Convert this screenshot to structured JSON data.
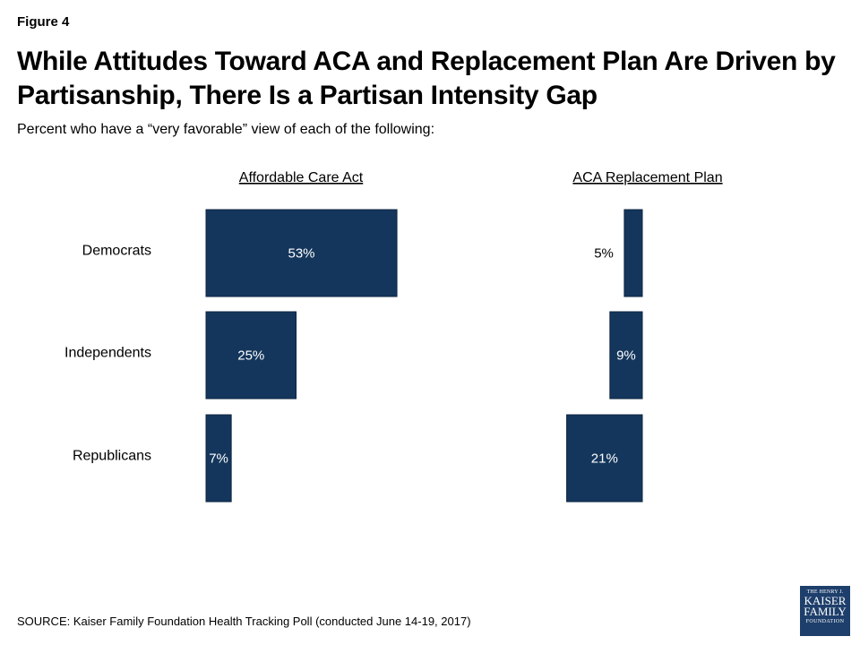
{
  "figure_label": "Figure 4",
  "title": "While Attitudes Toward ACA and Replacement Plan Are Driven by Partisanship, There Is a Partisan Intensity Gap",
  "subtitle": "Percent who have a “very favorable” view of each of the following:",
  "source": "SOURCE: Kaiser Family Foundation Health Tracking Poll (conducted June 14-19, 2017)",
  "logo": {
    "line1": "THE HENRY J.",
    "line2": "KAISER",
    "line3": "FAMILY",
    "line4": "FOUNDATION"
  },
  "colors": {
    "bar": "#14365c",
    "bar_border": "#0d2540",
    "label_inside": "#ffffff",
    "label_outside": "#000000"
  },
  "chart_data": {
    "type": "bar",
    "orientation": "horizontal",
    "categories": [
      "Democrats",
      "Independents",
      "Republicans"
    ],
    "panels": [
      {
        "name": "Affordable Care Act",
        "direction": "right",
        "values": [
          53,
          25,
          7
        ],
        "labels": [
          "53%",
          "25%",
          "7%"
        ]
      },
      {
        "name": "ACA Replacement Plan",
        "direction": "left",
        "values": [
          5,
          9,
          21
        ],
        "labels": [
          "5%",
          "9%",
          "21%"
        ]
      }
    ],
    "unit": "%",
    "grid": false,
    "legend": "none"
  }
}
